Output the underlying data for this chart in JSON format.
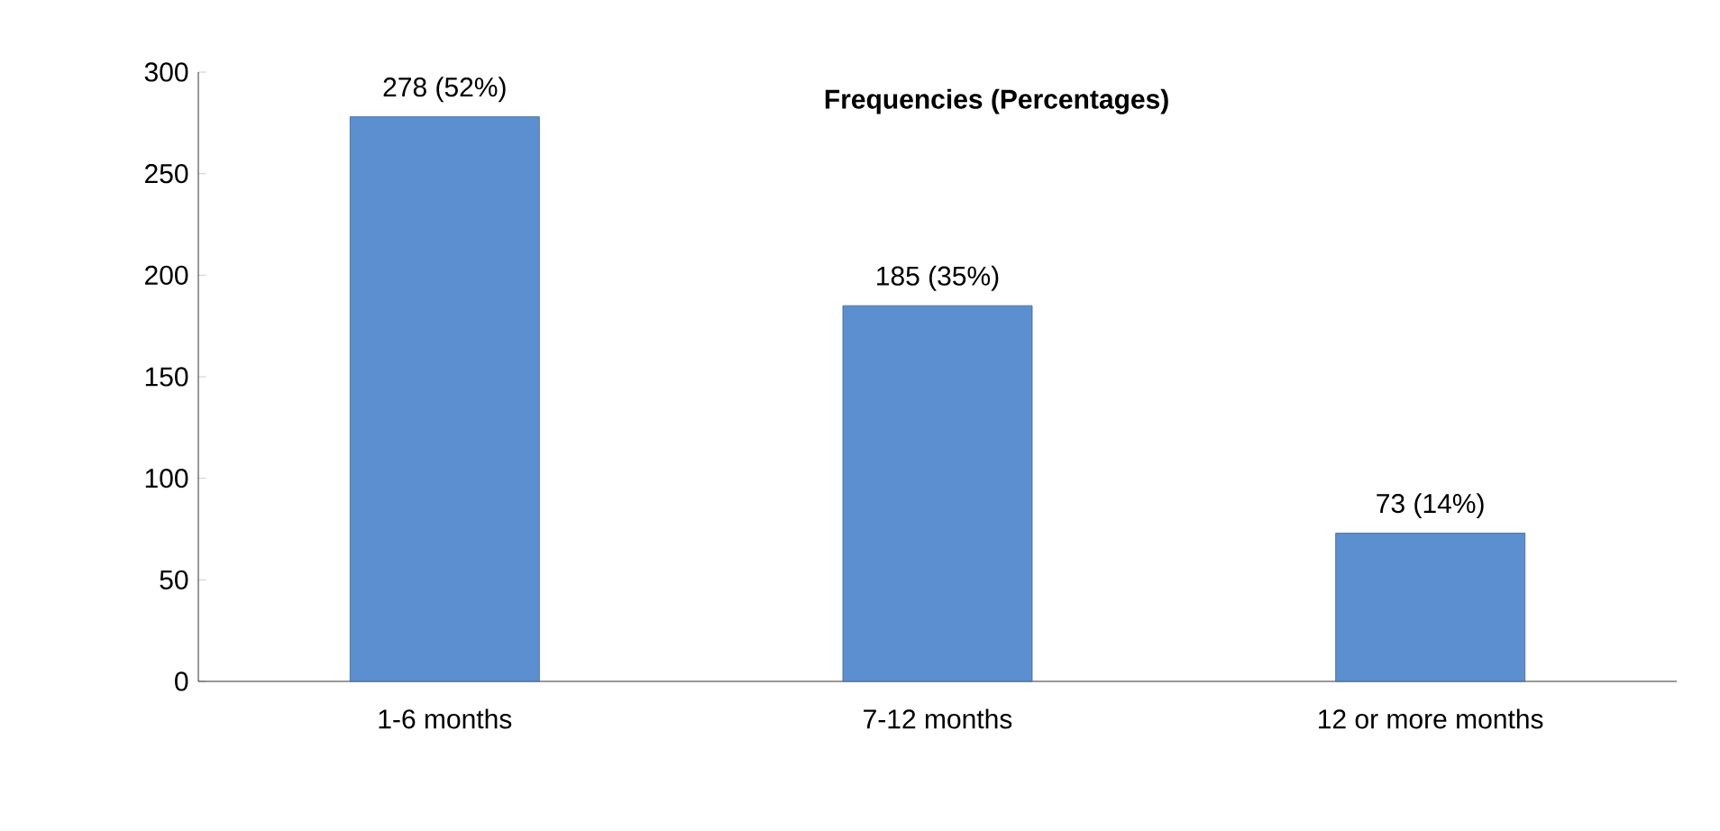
{
  "chart_data": {
    "type": "bar",
    "title": "Frequencies (Percentages)",
    "categories": [
      "1-6 months",
      "7-12 months",
      "12 or more months"
    ],
    "values": [
      278,
      185,
      73
    ],
    "value_labels": [
      "278 (52%)",
      "185 (35%)",
      "73 (14%)"
    ],
    "color": "#5b8fd0",
    "ylim": [
      0,
      300
    ],
    "yticks": [
      0,
      50,
      100,
      150,
      200,
      250,
      300
    ]
  }
}
